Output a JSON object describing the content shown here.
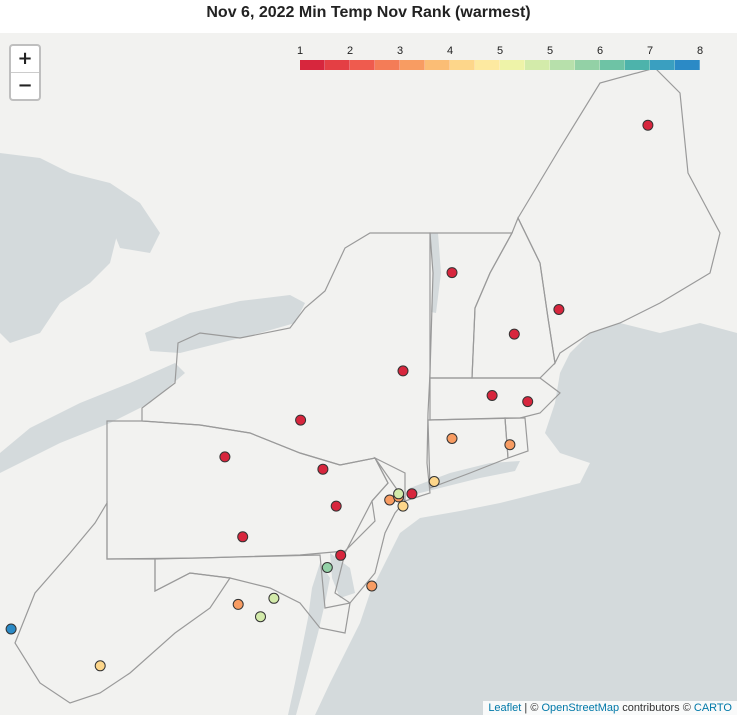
{
  "title": "Nov 6, 2022 Min Temp Nov Rank (warmest)",
  "zoom": {
    "in_label": "+",
    "out_label": "−"
  },
  "attribution": {
    "leaflet": "Leaflet",
    "sep1": " | © ",
    "osm": "OpenStreetMap",
    "mid": " contributors © ",
    "carto": "CARTO"
  },
  "legend": {
    "ticks": [
      "1",
      "2",
      "3",
      "4",
      "5",
      "5",
      "6",
      "7",
      "8"
    ],
    "colors": [
      "#d7263d",
      "#e43f44",
      "#ef5b4e",
      "#f47c57",
      "#f89c62",
      "#fbbd75",
      "#fdd68a",
      "#fde9a0",
      "#eef3a8",
      "#d3ebaa",
      "#b7e0ab",
      "#93d1a6",
      "#6ec3a5",
      "#4db3ab",
      "#3a9fc0",
      "#2b8ac6"
    ]
  },
  "colors": {
    "water": "#d4dadc",
    "land": "#f2f2f0",
    "border": "#9a9a9a",
    "marker_stroke": "#333333"
  },
  "stations": [
    {
      "lon": -68.3,
      "lat": 46.9,
      "rank": 1
    },
    {
      "lon": -72.7,
      "lat": 44.5,
      "rank": 1
    },
    {
      "lon": -71.3,
      "lat": 43.5,
      "rank": 1
    },
    {
      "lon": -70.3,
      "lat": 43.9,
      "rank": 1
    },
    {
      "lon": -73.8,
      "lat": 42.9,
      "rank": 1
    },
    {
      "lon": -71.8,
      "lat": 42.5,
      "rank": 1
    },
    {
      "lon": -71.0,
      "lat": 42.4,
      "rank": 1
    },
    {
      "lon": -76.1,
      "lat": 42.1,
      "rank": 1
    },
    {
      "lon": -77.8,
      "lat": 41.5,
      "rank": 1
    },
    {
      "lon": -75.6,
      "lat": 41.3,
      "rank": 1
    },
    {
      "lon": -75.3,
      "lat": 40.7,
      "rank": 1
    },
    {
      "lon": -77.4,
      "lat": 40.2,
      "rank": 1
    },
    {
      "lon": -73.6,
      "lat": 40.9,
      "rank": 1
    },
    {
      "lon": -75.2,
      "lat": 39.9,
      "rank": 1
    },
    {
      "lon": -72.7,
      "lat": 41.8,
      "rank": 3
    },
    {
      "lon": -71.4,
      "lat": 41.7,
      "rank": 3
    },
    {
      "lon": -74.1,
      "lat": 40.8,
      "rank": 3
    },
    {
      "lon": -74.5,
      "lat": 39.4,
      "rank": 3
    },
    {
      "lon": -77.5,
      "lat": 39.1,
      "rank": 3
    },
    {
      "lon": -73.9,
      "lat": 40.85,
      "rank": 3
    },
    {
      "lon": -73.1,
      "lat": 41.1,
      "rank": 4
    },
    {
      "lon": -73.8,
      "lat": 40.7,
      "rank": 4
    },
    {
      "lon": -80.6,
      "lat": 38.1,
      "rank": 4
    },
    {
      "lon": -73.9,
      "lat": 40.9,
      "rank": 5
    },
    {
      "lon": -76.7,
      "lat": 39.2,
      "rank": 5
    },
    {
      "lon": -77.0,
      "lat": 38.9,
      "rank": 5
    },
    {
      "lon": -75.5,
      "lat": 39.7,
      "rank": 6
    },
    {
      "lon": -82.6,
      "lat": 38.7,
      "rank": 8
    }
  ]
}
